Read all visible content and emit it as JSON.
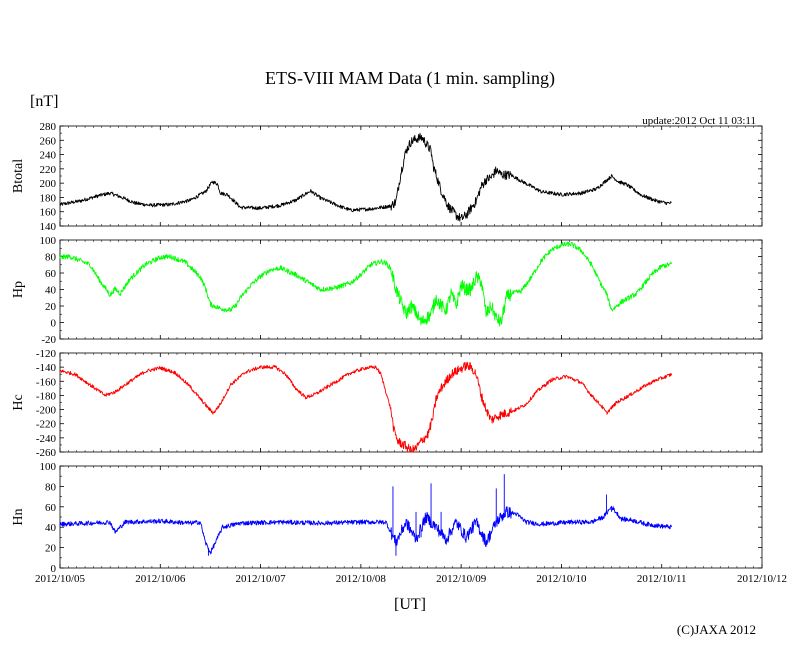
{
  "header": {
    "unit_label": "[nT]",
    "update_text": "update:2012 Oct 11 03:11",
    "copyright": "(C)JAXA 2012"
  },
  "chart_data": {
    "type": "line",
    "title": "ETS-VIII MAM Data (1 min. sampling)",
    "xlabel": "[UT]",
    "xlim": [
      0,
      7
    ],
    "x_ticks": [
      0,
      1,
      2,
      3,
      4,
      5,
      6,
      7
    ],
    "x_tick_labels": [
      "2012/10/05",
      "2012/10/06",
      "2012/10/07",
      "2012/10/08",
      "2012/10/09",
      "2012/10/10",
      "2012/10/11",
      "2012/10/12"
    ],
    "x_unit": "days since 2012/10/05 00:00 UT",
    "panels": [
      {
        "name": "Btotal",
        "ylabel": "Btotal",
        "color": "#000000",
        "ylim": [
          140,
          280
        ],
        "y_ticks": [
          140,
          160,
          180,
          200,
          220,
          240,
          260,
          280
        ],
        "noise": 2.5,
        "spikes": [],
        "points": [
          [
            0,
            170
          ],
          [
            0.2,
            175
          ],
          [
            0.4,
            183
          ],
          [
            0.5,
            186
          ],
          [
            0.6,
            181
          ],
          [
            0.75,
            172
          ],
          [
            0.9,
            169
          ],
          [
            1.1,
            170
          ],
          [
            1.3,
            176
          ],
          [
            1.45,
            188
          ],
          [
            1.52,
            202
          ],
          [
            1.57,
            199
          ],
          [
            1.6,
            186
          ],
          [
            1.67,
            184
          ],
          [
            1.8,
            166
          ],
          [
            2.0,
            165
          ],
          [
            2.2,
            169
          ],
          [
            2.35,
            176
          ],
          [
            2.45,
            185
          ],
          [
            2.5,
            189
          ],
          [
            2.6,
            179
          ],
          [
            2.8,
            167
          ],
          [
            2.9,
            162
          ],
          [
            3.1,
            164
          ],
          [
            3.3,
            168
          ],
          [
            3.35,
            174
          ],
          [
            3.4,
            215
          ],
          [
            3.45,
            245
          ],
          [
            3.5,
            258
          ],
          [
            3.55,
            262
          ],
          [
            3.6,
            264
          ],
          [
            3.62,
            262
          ],
          [
            3.7,
            245
          ],
          [
            3.72,
            225
          ],
          [
            3.8,
            190
          ],
          [
            3.87,
            168
          ],
          [
            3.9,
            163
          ],
          [
            3.95,
            155
          ],
          [
            4.0,
            150
          ],
          [
            4.05,
            155
          ],
          [
            4.1,
            165
          ],
          [
            4.15,
            175
          ],
          [
            4.2,
            195
          ],
          [
            4.25,
            205
          ],
          [
            4.3,
            208
          ],
          [
            4.35,
            218
          ],
          [
            4.4,
            212
          ],
          [
            4.5,
            211
          ],
          [
            4.6,
            203
          ],
          [
            4.8,
            188
          ],
          [
            5.0,
            184
          ],
          [
            5.2,
            186
          ],
          [
            5.35,
            192
          ],
          [
            5.45,
            204
          ],
          [
            5.5,
            210
          ],
          [
            5.57,
            202
          ],
          [
            5.65,
            198
          ],
          [
            5.8,
            183
          ],
          [
            5.95,
            175
          ],
          [
            6.05,
            172
          ],
          [
            6.1,
            172
          ]
        ]
      },
      {
        "name": "Hp",
        "ylabel": "Hp",
        "color": "#00ff00",
        "ylim": [
          -20,
          100
        ],
        "y_ticks": [
          -20,
          0,
          20,
          40,
          60,
          80,
          100
        ],
        "noise": 3,
        "spikes": [],
        "points": [
          [
            0,
            79
          ],
          [
            0.1,
            80
          ],
          [
            0.3,
            70
          ],
          [
            0.4,
            50
          ],
          [
            0.45,
            42
          ],
          [
            0.5,
            33
          ],
          [
            0.55,
            41
          ],
          [
            0.6,
            35
          ],
          [
            0.7,
            53
          ],
          [
            0.85,
            70
          ],
          [
            1.0,
            79
          ],
          [
            1.1,
            80
          ],
          [
            1.25,
            73
          ],
          [
            1.4,
            55
          ],
          [
            1.45,
            42
          ],
          [
            1.5,
            22
          ],
          [
            1.6,
            17
          ],
          [
            1.7,
            15
          ],
          [
            1.75,
            20
          ],
          [
            1.8,
            30
          ],
          [
            1.9,
            45
          ],
          [
            2.0,
            56
          ],
          [
            2.1,
            64
          ],
          [
            2.2,
            66
          ],
          [
            2.35,
            58
          ],
          [
            2.5,
            47
          ],
          [
            2.6,
            40
          ],
          [
            2.75,
            42
          ],
          [
            2.9,
            48
          ],
          [
            3.0,
            58
          ],
          [
            3.1,
            70
          ],
          [
            3.2,
            74
          ],
          [
            3.25,
            72
          ],
          [
            3.3,
            65
          ],
          [
            3.35,
            40
          ],
          [
            3.4,
            25
          ],
          [
            3.45,
            10
          ],
          [
            3.5,
            20
          ],
          [
            3.55,
            12
          ],
          [
            3.6,
            0
          ],
          [
            3.65,
            5
          ],
          [
            3.7,
            10
          ],
          [
            3.75,
            30
          ],
          [
            3.8,
            20
          ],
          [
            3.85,
            15
          ],
          [
            3.9,
            35
          ],
          [
            3.95,
            20
          ],
          [
            4.0,
            45
          ],
          [
            4.05,
            40
          ],
          [
            4.1,
            40
          ],
          [
            4.15,
            55
          ],
          [
            4.2,
            50
          ],
          [
            4.25,
            10
          ],
          [
            4.3,
            20
          ],
          [
            4.35,
            5
          ],
          [
            4.4,
            0
          ],
          [
            4.45,
            30
          ],
          [
            4.5,
            35
          ],
          [
            4.6,
            38
          ],
          [
            4.7,
            55
          ],
          [
            4.8,
            75
          ],
          [
            4.9,
            88
          ],
          [
            5.0,
            94
          ],
          [
            5.1,
            95
          ],
          [
            5.2,
            87
          ],
          [
            5.3,
            70
          ],
          [
            5.4,
            45
          ],
          [
            5.45,
            35
          ],
          [
            5.5,
            15
          ],
          [
            5.6,
            25
          ],
          [
            5.75,
            35
          ],
          [
            5.9,
            58
          ],
          [
            6.0,
            68
          ],
          [
            6.1,
            71
          ]
        ]
      },
      {
        "name": "Hc",
        "ylabel": "Hc",
        "color": "#ff0000",
        "ylim": [
          -260,
          -120
        ],
        "y_ticks": [
          -260,
          -240,
          -220,
          -200,
          -180,
          -160,
          -140,
          -120
        ],
        "noise": 2.5,
        "spikes": [],
        "points": [
          [
            0,
            -145
          ],
          [
            0.15,
            -150
          ],
          [
            0.3,
            -165
          ],
          [
            0.45,
            -180
          ],
          [
            0.55,
            -175
          ],
          [
            0.7,
            -160
          ],
          [
            0.85,
            -146
          ],
          [
            1.0,
            -141
          ],
          [
            1.15,
            -148
          ],
          [
            1.3,
            -168
          ],
          [
            1.4,
            -185
          ],
          [
            1.48,
            -198
          ],
          [
            1.53,
            -205
          ],
          [
            1.6,
            -192
          ],
          [
            1.7,
            -165
          ],
          [
            1.85,
            -147
          ],
          [
            2.0,
            -140
          ],
          [
            2.15,
            -140
          ],
          [
            2.25,
            -150
          ],
          [
            2.35,
            -170
          ],
          [
            2.45,
            -183
          ],
          [
            2.55,
            -178
          ],
          [
            2.7,
            -165
          ],
          [
            2.9,
            -148
          ],
          [
            3.05,
            -141
          ],
          [
            3.15,
            -140
          ],
          [
            3.2,
            -150
          ],
          [
            3.25,
            -175
          ],
          [
            3.3,
            -200
          ],
          [
            3.33,
            -230
          ],
          [
            3.37,
            -245
          ],
          [
            3.45,
            -252
          ],
          [
            3.5,
            -258
          ],
          [
            3.55,
            -255
          ],
          [
            3.6,
            -245
          ],
          [
            3.67,
            -235
          ],
          [
            3.72,
            -210
          ],
          [
            3.75,
            -185
          ],
          [
            3.8,
            -170
          ],
          [
            3.85,
            -160
          ],
          [
            3.9,
            -150
          ],
          [
            4.0,
            -142
          ],
          [
            4.05,
            -138
          ],
          [
            4.1,
            -140
          ],
          [
            4.15,
            -150
          ],
          [
            4.2,
            -180
          ],
          [
            4.25,
            -200
          ],
          [
            4.3,
            -215
          ],
          [
            4.35,
            -210
          ],
          [
            4.45,
            -205
          ],
          [
            4.55,
            -200
          ],
          [
            4.65,
            -192
          ],
          [
            4.75,
            -175
          ],
          [
            4.9,
            -158
          ],
          [
            5.05,
            -153
          ],
          [
            5.2,
            -162
          ],
          [
            5.3,
            -180
          ],
          [
            5.4,
            -195
          ],
          [
            5.45,
            -205
          ],
          [
            5.55,
            -190
          ],
          [
            5.7,
            -178
          ],
          [
            5.85,
            -165
          ],
          [
            5.95,
            -158
          ],
          [
            6.05,
            -153
          ],
          [
            6.1,
            -150
          ]
        ]
      },
      {
        "name": "Hn",
        "ylabel": "Hn",
        "color": "#0000ff",
        "ylim": [
          0,
          100
        ],
        "y_ticks": [
          0,
          20,
          40,
          60,
          80,
          100
        ],
        "noise": 2.2,
        "spikes": [
          [
            1.48,
            12
          ],
          [
            1.5,
            15
          ],
          [
            1.53,
            20
          ],
          [
            3.32,
            80
          ],
          [
            3.35,
            12
          ],
          [
            3.4,
            35
          ],
          [
            3.55,
            55
          ],
          [
            3.6,
            30
          ],
          [
            3.7,
            83
          ],
          [
            3.8,
            55
          ],
          [
            3.87,
            25
          ],
          [
            4.25,
            25
          ],
          [
            4.35,
            78
          ],
          [
            4.43,
            92
          ],
          [
            4.45,
            60
          ],
          [
            5.45,
            72
          ],
          [
            5.5,
            55
          ]
        ],
        "points": [
          [
            0,
            43
          ],
          [
            0.3,
            44
          ],
          [
            0.5,
            45
          ],
          [
            0.55,
            35
          ],
          [
            0.65,
            45
          ],
          [
            1.0,
            46
          ],
          [
            1.3,
            44
          ],
          [
            1.4,
            45
          ],
          [
            1.45,
            25
          ],
          [
            1.5,
            15
          ],
          [
            1.55,
            25
          ],
          [
            1.62,
            40
          ],
          [
            1.8,
            44
          ],
          [
            2.2,
            45
          ],
          [
            2.6,
            44
          ],
          [
            3.0,
            45
          ],
          [
            3.25,
            45
          ],
          [
            3.3,
            35
          ],
          [
            3.35,
            25
          ],
          [
            3.45,
            45
          ],
          [
            3.55,
            28
          ],
          [
            3.65,
            50
          ],
          [
            3.75,
            40
          ],
          [
            3.85,
            28
          ],
          [
            3.95,
            45
          ],
          [
            4.05,
            30
          ],
          [
            4.15,
            45
          ],
          [
            4.25,
            25
          ],
          [
            4.35,
            45
          ],
          [
            4.45,
            55
          ],
          [
            4.55,
            53
          ],
          [
            4.65,
            45
          ],
          [
            4.8,
            43
          ],
          [
            5.1,
            45
          ],
          [
            5.3,
            45
          ],
          [
            5.42,
            50
          ],
          [
            5.5,
            60
          ],
          [
            5.6,
            48
          ],
          [
            5.7,
            47
          ],
          [
            5.85,
            43
          ],
          [
            6.0,
            41
          ],
          [
            6.1,
            40
          ]
        ]
      }
    ]
  }
}
